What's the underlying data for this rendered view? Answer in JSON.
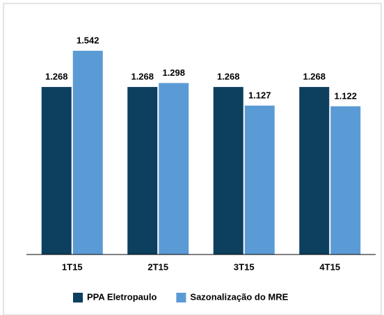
{
  "chart_data": {
    "type": "bar",
    "categories": [
      "1T15",
      "2T15",
      "3T15",
      "4T15"
    ],
    "series": [
      {
        "name": "PPA Eletropaulo",
        "color": "#0d3f5e",
        "values": [
          1268,
          1268,
          1268,
          1268
        ],
        "value_labels": [
          "1.268",
          "1.268",
          "1.268",
          "1.268"
        ]
      },
      {
        "name": "Sazonalização do MRE",
        "color": "#5b9bd5",
        "values": [
          1542,
          1298,
          1127,
          1122
        ],
        "value_labels": [
          "1.542",
          "1.298",
          "1.127",
          "1.122"
        ]
      }
    ],
    "ylim": [
      0,
      1600
    ],
    "legend": "bottom"
  }
}
